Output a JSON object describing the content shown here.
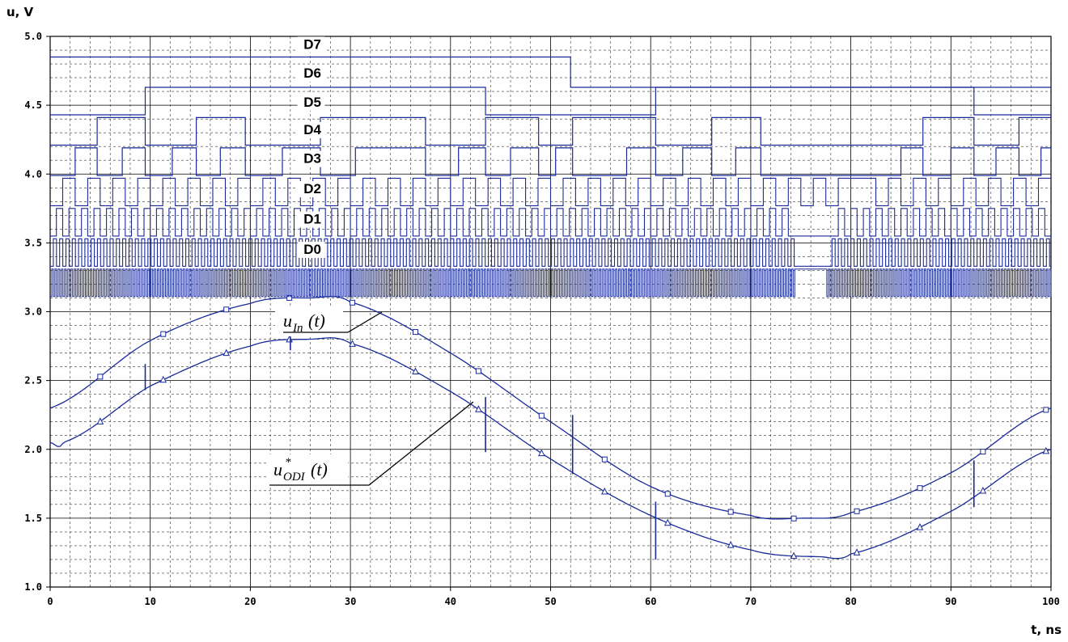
{
  "chart_data": {
    "type": "line",
    "title": "",
    "ylabel": "u, V",
    "xlabel": "t, ns",
    "xlim": [
      0,
      100
    ],
    "ylim": [
      1.0,
      5.0
    ],
    "x_ticks": [
      "0",
      "10",
      "20",
      "30",
      "40",
      "50",
      "60",
      "70",
      "80",
      "90",
      "100"
    ],
    "y_ticks": [
      "1.0",
      "1.5",
      "2.0",
      "2.5",
      "3.0",
      "3.5",
      "4.0",
      "4.5",
      "5.0"
    ],
    "grid": true,
    "line_color": "#1a2a9a",
    "series": [
      {
        "name_main": "u",
        "name_sub": "In",
        "name_arg": "(t)",
        "marker": "square",
        "x": [
          0,
          10,
          20,
          26,
          30,
          40,
          50,
          60,
          70,
          75,
          80,
          90,
          100
        ],
        "y": [
          2.3,
          2.79,
          3.06,
          3.1,
          3.07,
          2.7,
          2.2,
          1.73,
          1.52,
          1.5,
          1.54,
          1.83,
          2.3
        ]
      },
      {
        "name_main": "u",
        "name_sub": "ODI",
        "name_sup": "*",
        "name_arg": "(t)",
        "marker": "triangle",
        "x": [
          0,
          1.3,
          10,
          20,
          26,
          30,
          40,
          50,
          60,
          70,
          77,
          80,
          90,
          100
        ],
        "y": [
          2.05,
          2.05,
          2.46,
          2.75,
          2.8,
          2.77,
          2.42,
          1.93,
          1.52,
          1.27,
          1.22,
          1.24,
          1.55,
          2.0
        ]
      }
    ],
    "digital_traces": [
      {
        "name": "D7",
        "label_y": 4.91,
        "low": 4.63,
        "high": 4.85,
        "edges": [
          52
        ]
      },
      {
        "name": "D6",
        "label_y": 4.7,
        "low": 4.43,
        "high": 4.63,
        "edges": [
          9.5,
          43.5,
          60.5,
          92.3
        ]
      },
      {
        "name": "D5",
        "label_y": 4.49,
        "low": 4.21,
        "high": 4.41,
        "edges": [
          4.7,
          9.5,
          14.6,
          19.5,
          27.0,
          37.5,
          43.5,
          48.8,
          52.2,
          60.5,
          66.1,
          71.0,
          87.2,
          92.3,
          96.8
        ]
      },
      {
        "name": "D4",
        "label_y": 4.29,
        "low": 3.99,
        "high": 4.19,
        "edges": [
          2.5,
          4.7,
          7.2,
          9.5,
          12.2,
          14.6,
          17.0,
          19.5,
          23.2,
          27.0,
          30.5,
          37.5,
          40.8,
          43.5,
          46.0,
          48.8,
          50.5,
          52.2,
          57.6,
          60.5,
          63.2,
          66.1,
          68.5,
          71.0,
          85.0,
          87.2,
          90.0,
          92.3,
          94.5,
          96.8,
          99.0
        ]
      }
    ],
    "dense_traces": [
      {
        "name": "D3",
        "label_y": 4.08,
        "low": 3.77,
        "high": 3.97,
        "period": 2.5,
        "gap": [
          79.0,
          81.5
        ]
      },
      {
        "name": "D2",
        "label_y": 3.86,
        "low": 3.55,
        "high": 3.75,
        "period": 1.25,
        "gap": [
          74.0,
          78.5
        ]
      },
      {
        "name": "D1",
        "label_y": 3.64,
        "low": 3.33,
        "high": 3.53,
        "period": 0.63,
        "gap": [
          74.5,
          78.0
        ]
      },
      {
        "name": "D0",
        "label_y": 3.42,
        "low": 3.11,
        "high": 3.31,
        "period": 0.32,
        "gap": [
          74.5,
          77.5
        ]
      }
    ]
  }
}
